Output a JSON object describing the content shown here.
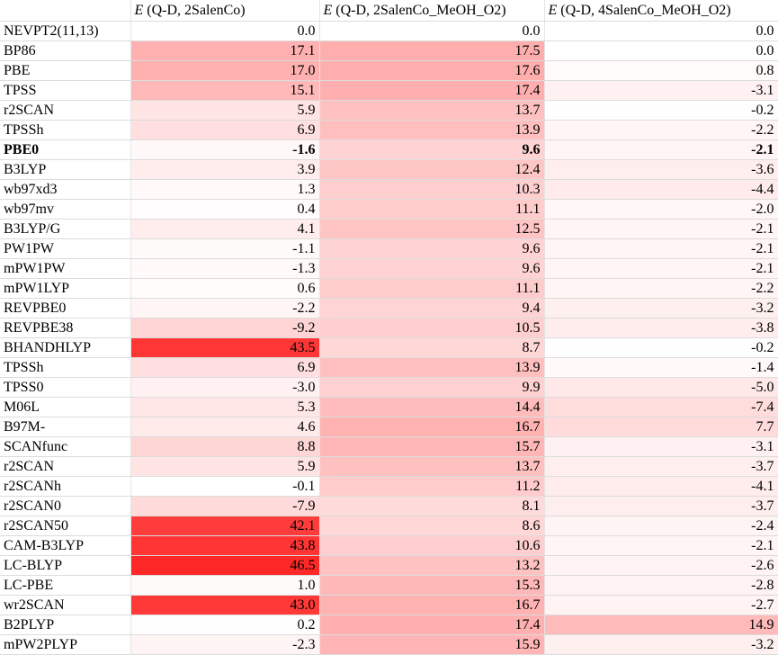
{
  "table": {
    "columns": [
      {
        "symbol": "E",
        "label": "(Q-D, 2SalenCo)"
      },
      {
        "symbol": "E",
        "label": "(Q-D, 2SalenCo_MeOH_O2)"
      },
      {
        "symbol": "E",
        "label": "(Q-D, 4SalenCo_MeOH_O2)"
      }
    ],
    "rows": [
      {
        "label": "NEVPT2(11,13)",
        "values": [
          "0.0",
          "0.0",
          "0.0"
        ]
      },
      {
        "label": "BP86",
        "values": [
          "17.1",
          "17.5",
          "0.0"
        ]
      },
      {
        "label": "PBE",
        "values": [
          "17.0",
          "17.6",
          "0.8"
        ]
      },
      {
        "label": "TPSS",
        "values": [
          "15.1",
          "17.4",
          "-3.1"
        ]
      },
      {
        "label": "r2SCAN",
        "values": [
          "5.9",
          "13.7",
          "-0.2"
        ]
      },
      {
        "label": "TPSSh",
        "values": [
          "6.9",
          "13.9",
          "-2.2"
        ]
      },
      {
        "label": "PBE0",
        "values": [
          "-1.6",
          "9.6",
          "-2.1"
        ],
        "bold": true
      },
      {
        "label": "B3LYP",
        "values": [
          "3.9",
          "12.4",
          "-3.6"
        ]
      },
      {
        "label": "wb97xd3",
        "values": [
          "1.3",
          "10.3",
          "-4.4"
        ]
      },
      {
        "label": "wb97mv",
        "values": [
          "0.4",
          "11.1",
          "-2.0"
        ]
      },
      {
        "label": "B3LYP/G",
        "values": [
          "4.1",
          "12.5",
          "-2.1"
        ]
      },
      {
        "label": "PW1PW",
        "values": [
          "-1.1",
          "9.6",
          "-2.1"
        ]
      },
      {
        "label": "mPW1PW",
        "values": [
          "-1.3",
          "9.6",
          "-2.1"
        ]
      },
      {
        "label": "mPW1LYP",
        "values": [
          "0.6",
          "11.1",
          "-2.2"
        ]
      },
      {
        "label": "REVPBE0",
        "values": [
          "-2.2",
          "9.4",
          "-3.2"
        ]
      },
      {
        "label": "REVPBE38",
        "values": [
          "-9.2",
          "10.5",
          "-3.8"
        ]
      },
      {
        "label": "BHANDHLYP",
        "values": [
          "43.5",
          "8.7",
          "-0.2"
        ]
      },
      {
        "label": "TPSSh",
        "values": [
          "6.9",
          "13.9",
          "-1.4"
        ]
      },
      {
        "label": "TPSS0",
        "values": [
          "-3.0",
          "9.9",
          "-5.0"
        ]
      },
      {
        "label": "M06L",
        "values": [
          "5.3",
          "14.4",
          "-7.4"
        ]
      },
      {
        "label": "B97M-",
        "values": [
          "4.6",
          "16.7",
          "7.7"
        ]
      },
      {
        "label": "SCANfunc",
        "values": [
          "8.8",
          "15.7",
          "-3.1"
        ]
      },
      {
        "label": "r2SCAN",
        "values": [
          "5.9",
          "13.7",
          "-3.7"
        ]
      },
      {
        "label": "r2SCANh",
        "values": [
          "-0.1",
          "11.2",
          "-4.1"
        ]
      },
      {
        "label": "r2SCAN0",
        "values": [
          "-7.9",
          "8.1",
          "-3.7"
        ]
      },
      {
        "label": "r2SCAN50",
        "values": [
          "42.1",
          "8.6",
          "-2.4"
        ]
      },
      {
        "label": "CAM-B3LYP",
        "values": [
          "43.8",
          "10.6",
          "-2.1"
        ]
      },
      {
        "label": "LC-BLYP",
        "values": [
          "46.5",
          "13.2",
          "-2.6"
        ]
      },
      {
        "label": "LC-PBE",
        "values": [
          "1.0",
          "15.3",
          "-2.8"
        ]
      },
      {
        "label": "wr2SCAN",
        "values": [
          "43.0",
          "16.7",
          "-2.7"
        ]
      },
      {
        "label": "B2PLYP",
        "values": [
          "0.2",
          "17.4",
          "14.9"
        ]
      },
      {
        "label": "mPW2PLYP",
        "values": [
          "-2.3",
          "15.9",
          "-3.2"
        ]
      }
    ]
  }
}
